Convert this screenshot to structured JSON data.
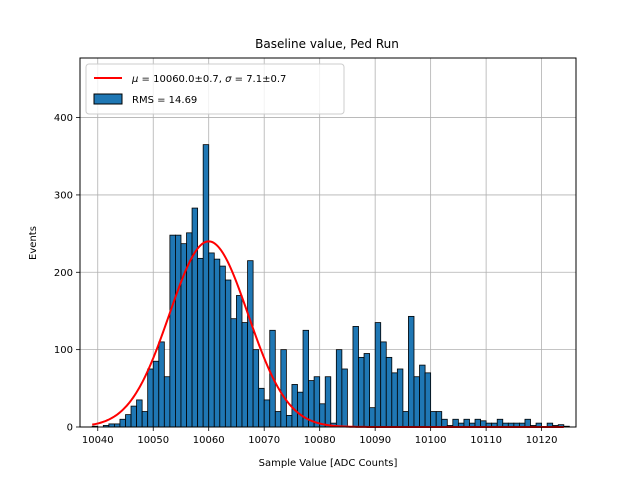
{
  "chart_data": {
    "type": "bar",
    "title": "Baseline value, Ped Run",
    "xlabel": "Sample Value [ADC Counts]",
    "ylabel": "Events",
    "xlim": [
      10036.8,
      10126.2
    ],
    "ylim": [
      0,
      477
    ],
    "xticks": [
      10040,
      10050,
      10060,
      10070,
      10080,
      10090,
      10100,
      10110,
      10120
    ],
    "yticks": [
      0,
      100,
      200,
      300,
      400
    ],
    "grid": true,
    "legend_position": "top-left",
    "bar_color": "#1f77b4",
    "fit_color": "#ff0000",
    "histogram": {
      "name": "RMS = 14.69",
      "bin_start": 10039,
      "bin_width": 1,
      "counts": [
        1,
        0,
        2,
        4,
        4,
        10,
        16,
        27,
        35,
        20,
        75,
        85,
        110,
        65,
        248,
        248,
        237,
        251,
        283,
        218,
        365,
        225,
        217,
        208,
        190,
        140,
        170,
        135,
        215,
        100,
        50,
        35,
        125,
        20,
        100,
        15,
        55,
        45,
        125,
        60,
        65,
        30,
        65,
        5,
        100,
        75,
        0,
        130,
        90,
        95,
        25,
        135,
        110,
        90,
        70,
        75,
        20,
        143,
        65,
        80,
        70,
        20,
        20,
        10,
        2,
        10,
        5,
        10,
        5,
        10,
        8,
        5,
        5,
        10,
        5,
        5,
        5,
        5,
        10,
        2,
        5,
        0,
        5,
        2,
        3,
        1
      ]
    },
    "fit": {
      "name": "$\\mu = 10060.0 \\pm 0.7$, $\\sigma = 7.1 \\pm 0.7$",
      "mu": 10060.0,
      "sigma": 7.1,
      "amplitude": 240,
      "x_range": [
        10039,
        10124
      ]
    }
  }
}
